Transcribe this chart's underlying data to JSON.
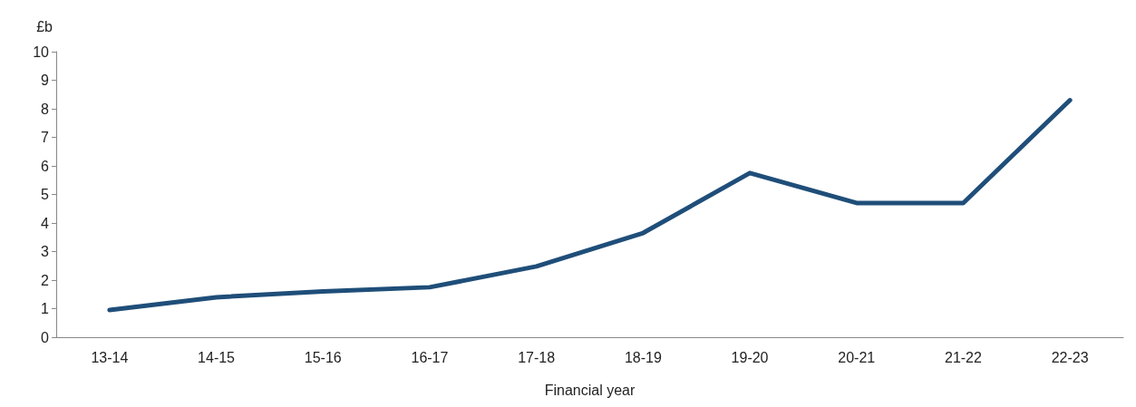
{
  "chart_data": {
    "type": "line",
    "ylabel": "£b",
    "xlabel": "Financial year",
    "categories": [
      "13-14",
      "14-15",
      "15-16",
      "16-17",
      "17-18",
      "18-19",
      "19-20",
      "20-21",
      "21-22",
      "22-23"
    ],
    "series": [
      {
        "color": "#1f4e79",
        "values": [
          0.95,
          1.4,
          1.6,
          1.75,
          2.48,
          3.65,
          5.75,
          4.7,
          4.7,
          8.3
        ]
      }
    ],
    "ylim": [
      0,
      10
    ],
    "yticks": [
      0,
      1,
      2,
      3,
      4,
      5,
      6,
      7,
      8,
      9,
      10
    ],
    "grid": false,
    "marker": "none",
    "line_style": "solid"
  }
}
